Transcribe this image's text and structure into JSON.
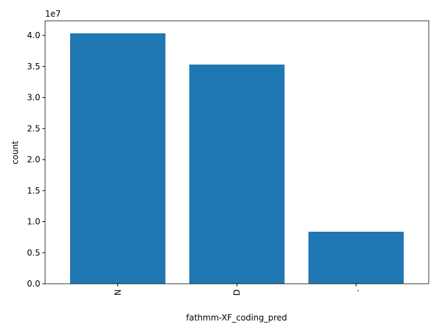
{
  "chart_data": {
    "type": "bar",
    "x_label": "fathmm-XF_coding_pred",
    "y_label": "count",
    "y_offset_label": "1e7",
    "categories": [
      "N",
      "D",
      "."
    ],
    "values": [
      40330000,
      35300000,
      8380000
    ],
    "color": "#1f77b4",
    "ylim": [
      0,
      42346500
    ],
    "yticks": [
      {
        "value": 0,
        "label": "0.0"
      },
      {
        "value": 5000000,
        "label": "0.5"
      },
      {
        "value": 10000000,
        "label": "1.0"
      },
      {
        "value": 15000000,
        "label": "1.5"
      },
      {
        "value": 20000000,
        "label": "2.0"
      },
      {
        "value": 25000000,
        "label": "2.5"
      },
      {
        "value": 30000000,
        "label": "3.0"
      },
      {
        "value": 35000000,
        "label": "3.5"
      },
      {
        "value": 40000000,
        "label": "4.0"
      }
    ],
    "grid": false
  }
}
